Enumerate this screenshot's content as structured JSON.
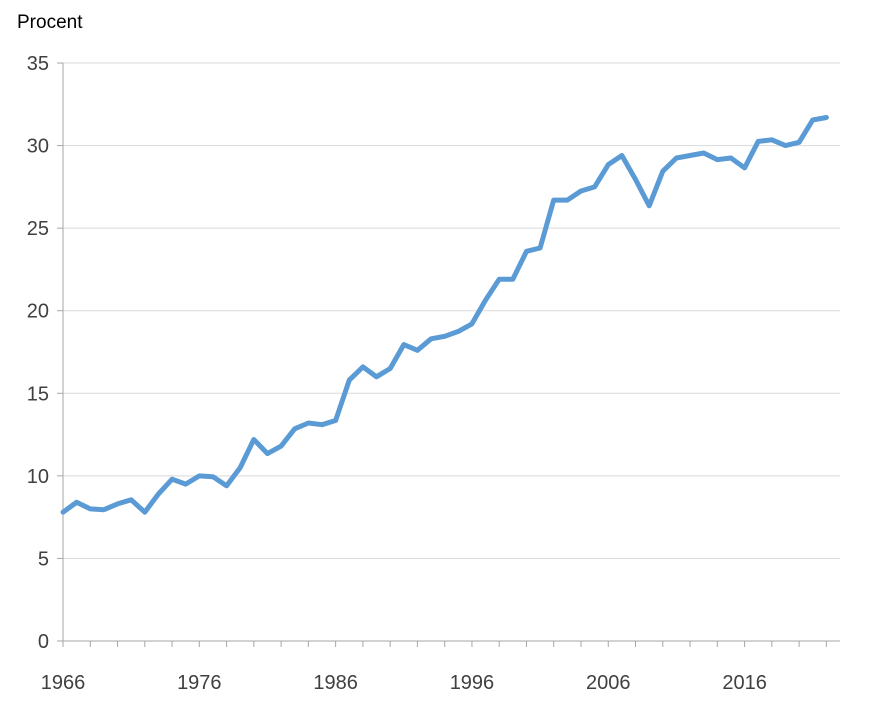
{
  "chart_data": {
    "type": "line",
    "ylabel": "Procent",
    "xlabel": "",
    "ylim": [
      0,
      35
    ],
    "yticks": [
      0,
      5,
      10,
      15,
      20,
      25,
      30,
      35
    ],
    "xlim": [
      1966,
      2023
    ],
    "xticks": [
      1966,
      1976,
      1986,
      1996,
      2006,
      2016
    ],
    "grid": true,
    "legend": "none",
    "series": [
      {
        "color": "#5b9bd5",
        "x": [
          1966,
          1967,
          1968,
          1969,
          1970,
          1971,
          1972,
          1973,
          1974,
          1975,
          1976,
          1977,
          1978,
          1979,
          1980,
          1981,
          1982,
          1983,
          1984,
          1985,
          1986,
          1987,
          1988,
          1989,
          1990,
          1991,
          1992,
          1993,
          1994,
          1995,
          1996,
          1997,
          1998,
          1999,
          2000,
          2001,
          2002,
          2003,
          2004,
          2005,
          2006,
          2007,
          2008,
          2009,
          2010,
          2011,
          2012,
          2013,
          2014,
          2015,
          2016,
          2017,
          2018,
          2019,
          2020,
          2021,
          2022
        ],
        "y": [
          7.8,
          8.4,
          8.0,
          7.95,
          8.3,
          8.55,
          7.8,
          8.9,
          9.8,
          9.5,
          10.0,
          9.95,
          9.4,
          10.5,
          12.2,
          11.35,
          11.8,
          12.85,
          13.2,
          13.1,
          13.35,
          15.8,
          16.6,
          16.0,
          16.5,
          17.95,
          17.6,
          18.3,
          18.45,
          18.75,
          19.2,
          20.65,
          21.9,
          21.9,
          23.6,
          23.8,
          26.7,
          26.7,
          27.25,
          27.5,
          28.85,
          29.4,
          27.95,
          26.35,
          28.45,
          29.25,
          29.4,
          29.55,
          29.15,
          29.25,
          28.65,
          30.25,
          30.35,
          30.0,
          30.2,
          31.55,
          31.7
        ]
      }
    ]
  }
}
